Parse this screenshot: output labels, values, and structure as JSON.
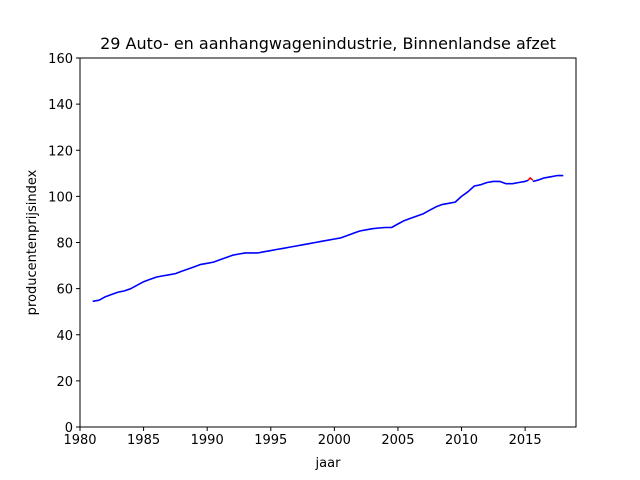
{
  "chart_data": {
    "type": "line",
    "title": "29 Auto- en aanhangwagenindustrie, Binnenlandse afzet",
    "xlabel": "jaar",
    "ylabel": "producentenprijsindex",
    "xlim": [
      1980,
      2019
    ],
    "ylim": [
      0,
      160
    ],
    "xticks": [
      1980,
      1985,
      1990,
      1995,
      2000,
      2005,
      2010,
      2015
    ],
    "yticks": [
      0,
      20,
      40,
      60,
      80,
      100,
      120,
      140,
      160
    ],
    "grid": false,
    "series": [
      {
        "color": "#0000ff",
        "x": [
          1981.0,
          1981.5,
          1982.0,
          1982.5,
          1983.0,
          1983.5,
          1984.0,
          1984.5,
          1985.0,
          1985.5,
          1986.0,
          1986.5,
          1987.0,
          1987.5,
          1988.0,
          1988.5,
          1989.0,
          1989.5,
          1990.0,
          1990.5,
          1991.0,
          1991.5,
          1992.0,
          1992.5,
          1993.0,
          1993.5,
          1994.0,
          1994.5,
          1995.0,
          1995.5,
          1996.0,
          1996.5,
          1997.0,
          1997.5,
          1998.0,
          1998.5,
          1999.0,
          1999.5,
          2000.0,
          2000.5,
          2001.0,
          2001.5,
          2002.0,
          2002.5,
          2003.0,
          2003.5,
          2004.0,
          2004.5,
          2005.0,
          2005.5,
          2006.0,
          2006.5,
          2007.0,
          2007.5,
          2008.0,
          2008.5,
          2009.0,
          2009.5,
          2010.0,
          2010.5,
          2011.0,
          2011.5,
          2012.0,
          2012.5,
          2013.0,
          2013.5,
          2014.0,
          2014.5,
          2015.0,
          2015.25
        ],
        "y": [
          54.5,
          55.0,
          56.5,
          57.5,
          58.5,
          59.0,
          60.0,
          61.5,
          63.0,
          64.0,
          65.0,
          65.5,
          66.0,
          66.5,
          67.5,
          68.5,
          69.5,
          70.5,
          71.0,
          71.5,
          72.5,
          73.5,
          74.5,
          75.0,
          75.5,
          75.5,
          75.5,
          76.0,
          76.5,
          77.0,
          77.5,
          78.0,
          78.5,
          79.0,
          79.5,
          80.0,
          80.5,
          81.0,
          81.5,
          82.0,
          83.0,
          84.0,
          85.0,
          85.5,
          86.0,
          86.3,
          86.5,
          86.5,
          88.0,
          89.5,
          90.5,
          91.5,
          92.5,
          94.0,
          95.5,
          96.5,
          97.0,
          97.5,
          100.0,
          102.0,
          104.5,
          105.0,
          106.0,
          106.5,
          106.5,
          105.5,
          105.5,
          106.0,
          106.5,
          107.0
        ]
      },
      {
        "color": "#ff0000",
        "x": [
          2015.25,
          2015.4,
          2015.6
        ],
        "y": [
          107.0,
          108.0,
          107.0
        ]
      },
      {
        "color": "#0000ff",
        "x": [
          2015.6,
          2016.0,
          2016.5,
          2017.0,
          2017.5,
          2018.0
        ],
        "y": [
          106.5,
          107.0,
          108.0,
          108.5,
          109.0,
          109.0
        ]
      }
    ]
  }
}
